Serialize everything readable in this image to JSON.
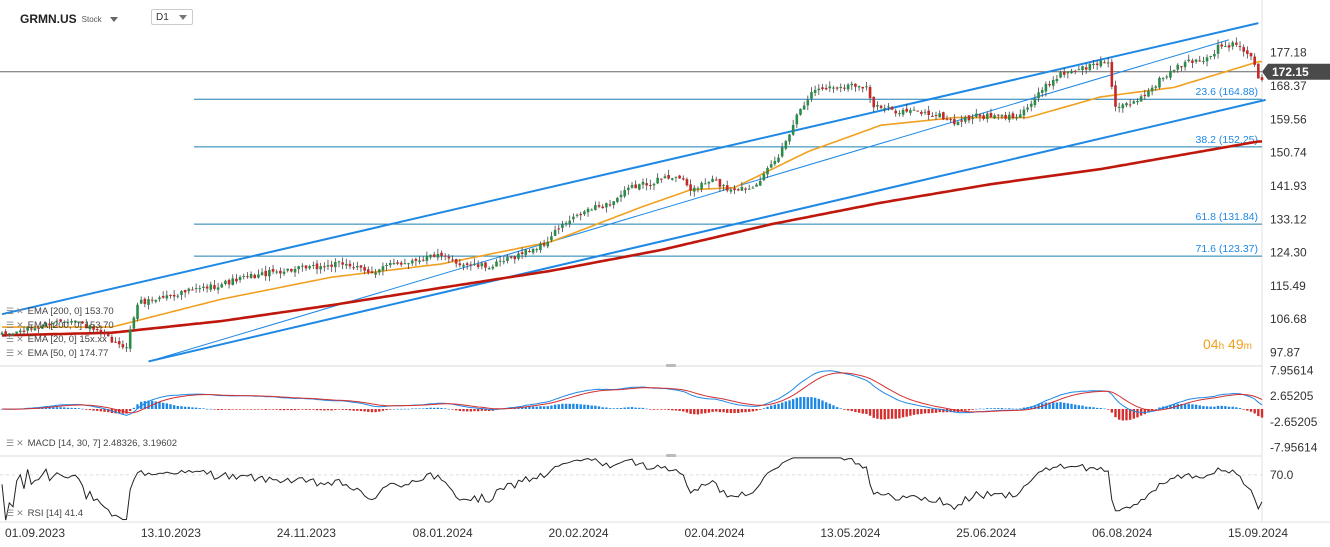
{
  "header": {
    "symbol": "GRMN.US",
    "type": "Stock",
    "timeframe": "D1"
  },
  "timer": {
    "hours": "04",
    "h": "h",
    "minutes": "49",
    "m": "m"
  },
  "legend": {
    "ema200a": "EMA [200, 0] 153.70",
    "ema200b": "EMA [200, 0] 153.70",
    "ema20": "EMA [20, 0] 15x.xx",
    "ema50": "EMA [50, 0] 174.77",
    "macd": "MACD [14, 30, 7] 2.48326, 3.19602",
    "rsi": "RSI [14] 41.4"
  },
  "colors": {
    "up": "#2b8c4a",
    "down": "#c62828",
    "ema50": "#f0a020",
    "ema200": "#c0170c",
    "channel": "#1e88e5",
    "fib": "#1e7fb0",
    "macd_line": "#1e88e5",
    "signal_line": "#d32f2f"
  },
  "chart_data": {
    "type": "candlestick",
    "symbol": "GRMN.US",
    "timeframe": "D1",
    "current_price": "172.15",
    "y_ticks": [
      "177.18",
      "168.37",
      "159.56",
      "150.74",
      "141.93",
      "133.12",
      "124.30",
      "115.49",
      "106.68",
      "97.87"
    ],
    "ylim": [
      94.3,
      185.3
    ],
    "x_labels": [
      "01.09.2023",
      "13.10.2023",
      "24.11.2023",
      "08.01.2024",
      "20.02.2024",
      "02.04.2024",
      "13.05.2024",
      "25.06.2024",
      "06.08.2024",
      "15.09.2024"
    ],
    "close_path": [
      [
        0,
        102.4
      ],
      [
        8,
        104.1
      ],
      [
        14,
        105.9
      ],
      [
        19,
        106.8
      ],
      [
        26,
        103.4
      ],
      [
        32,
        99.5
      ],
      [
        34,
        99.9
      ],
      [
        37,
        110.9
      ],
      [
        48,
        113.5
      ],
      [
        58,
        115.5
      ],
      [
        66,
        117.6
      ],
      [
        76,
        119.5
      ],
      [
        86,
        120.4
      ],
      [
        94,
        121.5
      ],
      [
        100,
        118.8
      ],
      [
        104,
        120.5
      ],
      [
        112,
        122.2
      ],
      [
        118,
        123.6
      ],
      [
        124,
        121.7
      ],
      [
        130,
        120.7
      ],
      [
        134,
        120.7
      ],
      [
        142,
        124.2
      ],
      [
        148,
        126.4
      ],
      [
        152,
        130.8
      ],
      [
        160,
        135.6
      ],
      [
        166,
        137.3
      ],
      [
        172,
        141.6
      ],
      [
        178,
        143.2
      ],
      [
        184,
        144.8
      ],
      [
        188,
        140.9
      ],
      [
        194,
        143.4
      ],
      [
        198,
        141.2
      ],
      [
        204,
        141.4
      ],
      [
        208,
        144.7
      ],
      [
        212,
        149.6
      ],
      [
        218,
        162.8
      ],
      [
        222,
        167.5
      ],
      [
        228,
        168.2
      ],
      [
        234,
        168.8
      ],
      [
        236,
        168.1
      ],
      [
        238,
        162.9
      ],
      [
        244,
        161.9
      ],
      [
        250,
        161.5
      ],
      [
        256,
        160.5
      ],
      [
        260,
        158.7
      ],
      [
        266,
        160.4
      ],
      [
        272,
        160.2
      ],
      [
        276,
        160.2
      ],
      [
        280,
        162.8
      ],
      [
        284,
        167.2
      ],
      [
        288,
        171.0
      ],
      [
        292,
        172.6
      ],
      [
        296,
        173.3
      ],
      [
        300,
        174.7
      ],
      [
        302,
        174.7
      ],
      [
        304,
        162.9
      ],
      [
        308,
        163.1
      ],
      [
        312,
        166.2
      ],
      [
        316,
        169.9
      ],
      [
        320,
        172.7
      ],
      [
        324,
        174.9
      ],
      [
        328,
        175.5
      ],
      [
        330,
        176.3
      ],
      [
        332,
        178.7
      ],
      [
        334,
        178.7
      ],
      [
        336,
        179.4
      ],
      [
        340,
        177.2
      ],
      [
        342,
        174.3
      ],
      [
        343,
        169.8
      ]
    ],
    "series": [
      {
        "name": "EMA [200, 0]",
        "values": [
          [
            0,
            102.4
          ],
          [
            30,
            103.1
          ],
          [
            60,
            106.2
          ],
          [
            90,
            110.4
          ],
          [
            120,
            115.0
          ],
          [
            150,
            119.5
          ],
          [
            180,
            125.0
          ],
          [
            210,
            131.8
          ],
          [
            240,
            137.5
          ],
          [
            270,
            142.4
          ],
          [
            300,
            146.4
          ],
          [
            343,
            153.7
          ]
        ]
      },
      {
        "name": "EMA [50, 0]",
        "values": [
          [
            0,
            104.6
          ],
          [
            30,
            104.6
          ],
          [
            60,
            112.0
          ],
          [
            90,
            117.8
          ],
          [
            120,
            121.3
          ],
          [
            150,
            127.2
          ],
          [
            175,
            136.5
          ],
          [
            188,
            140.9
          ],
          [
            200,
            141.5
          ],
          [
            220,
            151.0
          ],
          [
            240,
            158.0
          ],
          [
            260,
            160.0
          ],
          [
            280,
            160.0
          ],
          [
            300,
            165.5
          ],
          [
            320,
            168.0
          ],
          [
            343,
            174.8
          ]
        ]
      }
    ],
    "annotations": [
      {
        "label": "23.6 (164.88)",
        "value": 164.88
      },
      {
        "label": "38.2 (152.25)",
        "value": 152.25
      },
      {
        "label": "61.8 (131.84)",
        "value": 131.84
      },
      {
        "label": "71.6 (123.37)",
        "value": 123.37
      }
    ],
    "channel": {
      "upper": [
        [
          0,
          108.0
        ],
        [
          343,
          185.0
        ]
      ],
      "lower": [
        [
          40,
          95.5
        ],
        [
          345,
          164.7
        ]
      ],
      "mid": [
        [
          40,
          95.5
        ],
        [
          335,
          180.6
        ]
      ]
    },
    "horizontal_line": 172.15,
    "macd": {
      "params": "MACD [14, 30, 7]",
      "values": [
        2.48326,
        3.19602
      ],
      "y_ticks": [
        "7.95614",
        "2.65205",
        "-2.65205",
        "-7.95614"
      ],
      "ylim": [
        -8.9,
        8.9
      ]
    },
    "rsi": {
      "params": "RSI [14]",
      "value": 41.4,
      "y_ticks": [
        "70.0"
      ],
      "ylim": [
        20,
        90
      ]
    }
  }
}
